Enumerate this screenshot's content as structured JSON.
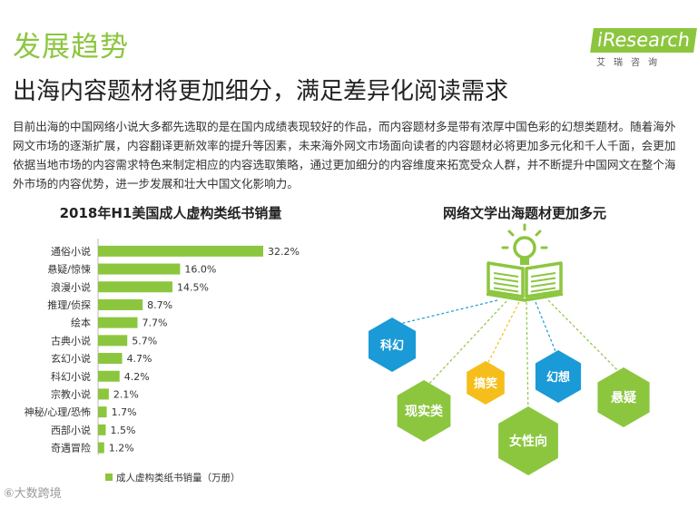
{
  "header": {
    "section_title": "发展趋势",
    "subtitle": "出海内容题材将更加细分，满足差异化阅读需求",
    "body_text": "目前出海的中国网络小说大多都先选取的是在国内成绩表现较好的作品，而内容题材多是带有浓厚中国色彩的幻想类题材。随着海外网文市场的逐渐扩展，内容翻译更新效率的提升等因素，未来海外网文市场面向读者的内容题材必将更加多元化和千人千面，会更加依据当地市场的内容需求特色来制定相应的内容选取策略，通过更加细分的内容维度来拓宽受众人群，并不断提升中国网文在整个海外市场的内容优势，进一步发展和壮大中国文化影响力。"
  },
  "logo": {
    "main": "iResearch",
    "sub": "艾瑞咨询"
  },
  "watermark": "⑥大数跨境",
  "colors": {
    "accent": "#8cc63f",
    "blue": "#1a9ad6",
    "yellow": "#f5be1a"
  },
  "chart_data": [
    {
      "type": "bar",
      "orientation": "horizontal",
      "title": "2018年H1美国成人虚构类纸书销量",
      "categories": [
        "通俗小说",
        "悬疑/惊悚",
        "浪漫小说",
        "推理/侦探",
        "绘本",
        "古典小说",
        "玄幻小说",
        "科幻小说",
        "宗教小说",
        "神秘/心理/恐怖",
        "西部小说",
        "奇遇冒险"
      ],
      "values": [
        32.2,
        16.0,
        14.5,
        8.7,
        7.7,
        5.7,
        4.7,
        4.2,
        2.1,
        1.7,
        1.5,
        1.2
      ],
      "value_labels": [
        "32.2%",
        "16.0%",
        "14.5%",
        "8.7%",
        "7.7%",
        "5.7%",
        "4.7%",
        "4.2%",
        "2.1%",
        "1.7%",
        "1.5%",
        "1.2%"
      ],
      "series": [
        {
          "name": "成人虚构类纸书销量（万册）",
          "color": "#8cc63f"
        }
      ],
      "legend": "bottom-left",
      "grid": false
    },
    {
      "type": "diagram",
      "title": "网络文学出海题材更加多元",
      "center_icon": "book-lightbulb-icon",
      "nodes": [
        {
          "label": "科幻",
          "color": "#1a9ad6"
        },
        {
          "label": "现实类",
          "color": "#8cc63f"
        },
        {
          "label": "搞笑",
          "color": "#f5be1a"
        },
        {
          "label": "女性向",
          "color": "#8cc63f"
        },
        {
          "label": "幻想",
          "color": "#1a9ad6"
        },
        {
          "label": "悬疑",
          "color": "#8cc63f"
        }
      ]
    }
  ]
}
